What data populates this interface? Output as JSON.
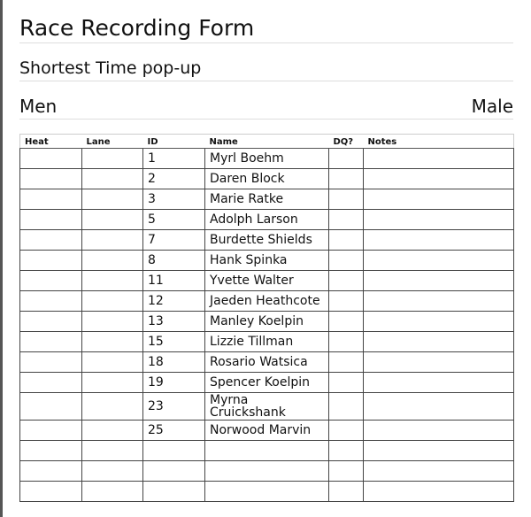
{
  "title": "Race Recording Form",
  "subtitle": "Shortest Time pop-up",
  "group": {
    "left": "Men",
    "right": "Male"
  },
  "table": {
    "headers": [
      "Heat",
      "Lane",
      "ID",
      "Name",
      "DQ?",
      "Notes"
    ],
    "rows": [
      {
        "id": "1",
        "name": "Myrl Boehm"
      },
      {
        "id": "2",
        "name": "Daren Block"
      },
      {
        "id": "3",
        "name": "Marie Ratke"
      },
      {
        "id": "5",
        "name": "Adolph Larson"
      },
      {
        "id": "7",
        "name": "Burdette Shields"
      },
      {
        "id": "8",
        "name": "Hank Spinka"
      },
      {
        "id": "11",
        "name": "Yvette Walter"
      },
      {
        "id": "12",
        "name": "Jaeden Heathcote"
      },
      {
        "id": "13",
        "name": "Manley Koelpin"
      },
      {
        "id": "15",
        "name": "Lizzie Tillman"
      },
      {
        "id": "18",
        "name": "Rosario Watsica"
      },
      {
        "id": "19",
        "name": "Spencer Koelpin"
      },
      {
        "id": "23",
        "name": "Myrna Cruickshank"
      },
      {
        "id": "25",
        "name": "Norwood Marvin"
      },
      {
        "id": "",
        "name": ""
      },
      {
        "id": "",
        "name": ""
      },
      {
        "id": "",
        "name": ""
      }
    ]
  }
}
